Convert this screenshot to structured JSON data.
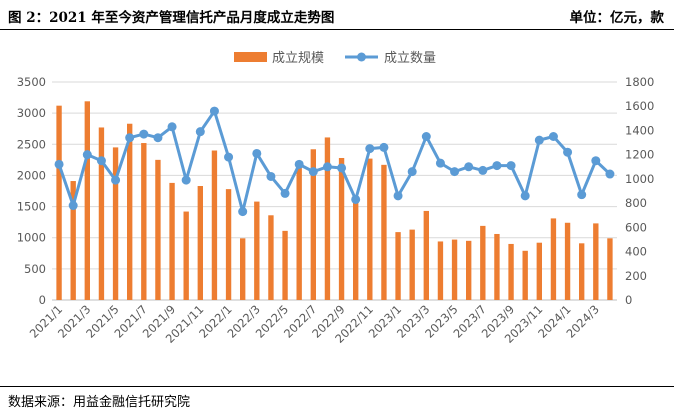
{
  "header": {
    "title": "图 2：2021 年至今资产管理信托产品月度成立走势图",
    "unit": "单位：亿元，款"
  },
  "footer": {
    "source": "数据来源：用益金融信托研究院"
  },
  "colors": {
    "bar": "#ED7D31",
    "line": "#5B9BD5",
    "grid": "#D9D9D9",
    "axis_text": "#595959"
  },
  "chart_data": {
    "type": "bar+line",
    "legend_position": "top-center",
    "grid": true,
    "categories": [
      "2021/1",
      "2021/2",
      "2021/3",
      "2021/4",
      "2021/5",
      "2021/6",
      "2021/7",
      "2021/8",
      "2021/9",
      "2021/10",
      "2021/11",
      "2021/12",
      "2022/1",
      "2022/2",
      "2022/3",
      "2022/4",
      "2022/5",
      "2022/6",
      "2022/7",
      "2022/8",
      "2022/9",
      "2022/10",
      "2022/11",
      "2022/12",
      "2023/1",
      "2023/2",
      "2023/3",
      "2023/4",
      "2023/5",
      "2023/6",
      "2023/7",
      "2023/8",
      "2023/9",
      "2023/10",
      "2023/11",
      "2023/12",
      "2024/1",
      "2024/2",
      "2024/3",
      "2024/4"
    ],
    "tick_labels": [
      "2021/1",
      "2021/3",
      "2021/5",
      "2021/7",
      "2021/9",
      "2021/11",
      "2022/1",
      "2022/3",
      "2022/5",
      "2022/7",
      "2022/9",
      "2022/11",
      "2023/1",
      "2023/3",
      "2023/5",
      "2023/7",
      "2023/9",
      "2023/11",
      "2024/1",
      "2024/3"
    ],
    "series": [
      {
        "name": "成立规模",
        "kind": "bar",
        "axis": "left",
        "values": [
          3120,
          1910,
          3190,
          2770,
          2450,
          2830,
          2520,
          2250,
          1880,
          1420,
          1830,
          2400,
          1780,
          990,
          1580,
          1360,
          1110,
          2160,
          2420,
          2610,
          2280,
          1640,
          2270,
          2170,
          1090,
          1130,
          1430,
          940,
          970,
          950,
          1190,
          1060,
          900,
          790,
          920,
          1310,
          1240,
          910,
          1230,
          990
        ]
      },
      {
        "name": "成立数量",
        "kind": "line",
        "axis": "right",
        "values": [
          1120,
          780,
          1200,
          1150,
          990,
          1340,
          1370,
          1340,
          1430,
          990,
          1390,
          1560,
          1180,
          730,
          1210,
          1020,
          880,
          1120,
          1060,
          1100,
          1090,
          830,
          1250,
          1260,
          860,
          1060,
          1350,
          1130,
          1060,
          1100,
          1070,
          1110,
          1110,
          860,
          1320,
          1350,
          1220,
          870,
          1150,
          1040
        ]
      }
    ],
    "y_left": {
      "min": 0,
      "max": 3500,
      "step": 500
    },
    "y_right": {
      "min": 0,
      "max": 1800,
      "step": 200
    }
  }
}
